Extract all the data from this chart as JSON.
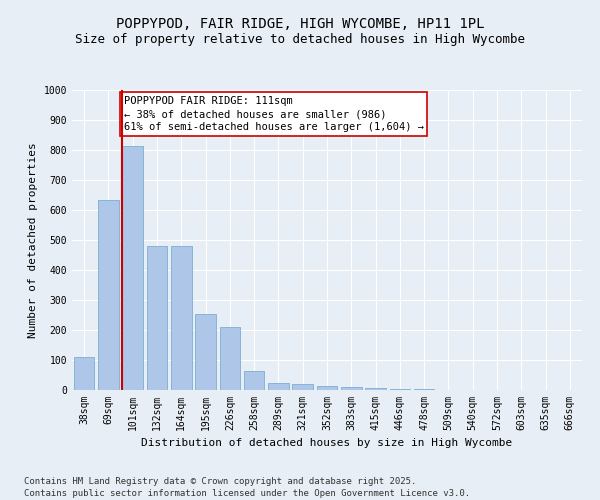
{
  "title_line1": "POPPYPOD, FAIR RIDGE, HIGH WYCOMBE, HP11 1PL",
  "title_line2": "Size of property relative to detached houses in High Wycombe",
  "xlabel": "Distribution of detached houses by size in High Wycombe",
  "ylabel": "Number of detached properties",
  "categories": [
    "38sqm",
    "69sqm",
    "101sqm",
    "132sqm",
    "164sqm",
    "195sqm",
    "226sqm",
    "258sqm",
    "289sqm",
    "321sqm",
    "352sqm",
    "383sqm",
    "415sqm",
    "446sqm",
    "478sqm",
    "509sqm",
    "540sqm",
    "572sqm",
    "603sqm",
    "635sqm",
    "666sqm"
  ],
  "values": [
    110,
    635,
    815,
    480,
    480,
    255,
    210,
    65,
    25,
    20,
    15,
    10,
    8,
    5,
    5,
    0,
    0,
    0,
    0,
    0,
    0
  ],
  "bar_color": "#aec6e8",
  "bar_edge_color": "#7aafd4",
  "vline_color": "#cc0000",
  "vline_x_index": 2,
  "annotation_text": "POPPYPOD FAIR RIDGE: 111sqm\n← 38% of detached houses are smaller (986)\n61% of semi-detached houses are larger (1,604) →",
  "annotation_box_facecolor": "#ffffff",
  "annotation_box_edgecolor": "#cc0000",
  "ylim": [
    0,
    1000
  ],
  "yticks": [
    0,
    100,
    200,
    300,
    400,
    500,
    600,
    700,
    800,
    900,
    1000
  ],
  "background_color": "#e8eef5",
  "grid_color": "#ffffff",
  "title_fontsize": 10,
  "subtitle_fontsize": 9,
  "axis_label_fontsize": 8,
  "tick_fontsize": 7,
  "annotation_fontsize": 7.5,
  "footer_fontsize": 6.5,
  "footer_line1": "Contains HM Land Registry data © Crown copyright and database right 2025.",
  "footer_line2": "Contains public sector information licensed under the Open Government Licence v3.0."
}
